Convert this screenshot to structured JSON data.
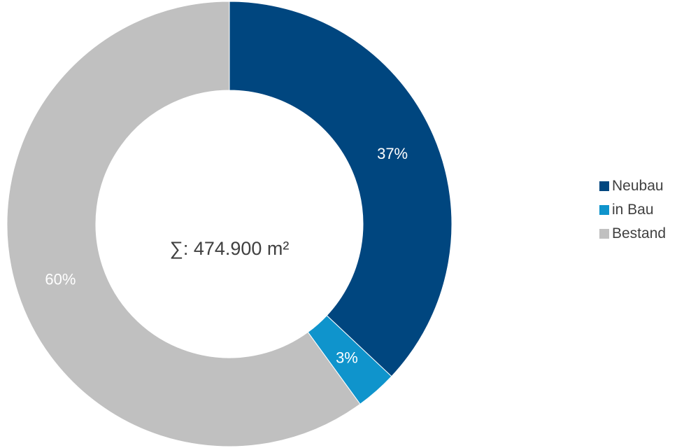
{
  "chart_data": {
    "type": "pie",
    "center_label": "∑: 474.900 m²",
    "slices": [
      {
        "name": "Neubau",
        "value": 37,
        "label": "37%",
        "color": "#00467F"
      },
      {
        "name": "in Bau",
        "value": 3,
        "label": "3%",
        "color": "#0F94CC"
      },
      {
        "name": "Bestand",
        "value": 60,
        "label": "60%",
        "color": "#C0C0C0"
      }
    ],
    "legend_position": "right",
    "donut": true
  }
}
